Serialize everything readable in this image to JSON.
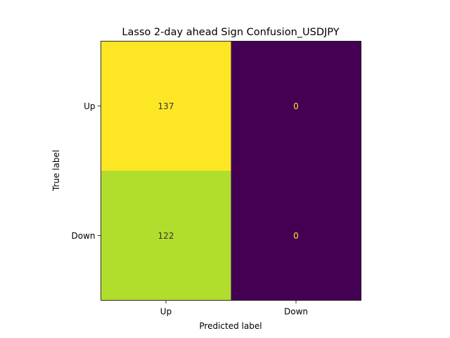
{
  "chart_data": {
    "type": "heatmap",
    "title": "Lasso 2-day ahead Sign Confusion_USDJPY",
    "xlabel": "Predicted label",
    "ylabel": "True label",
    "x_categories": [
      "Up",
      "Down"
    ],
    "y_categories": [
      "Up",
      "Down"
    ],
    "values": [
      [
        137,
        0
      ],
      [
        122,
        0
      ]
    ],
    "colormap": "viridis",
    "colors": {
      "low": "#440154",
      "high": "#fde725",
      "text_on_light": "#333333",
      "text_on_dark": "#fde725"
    },
    "grid": false,
    "legend": "none"
  }
}
